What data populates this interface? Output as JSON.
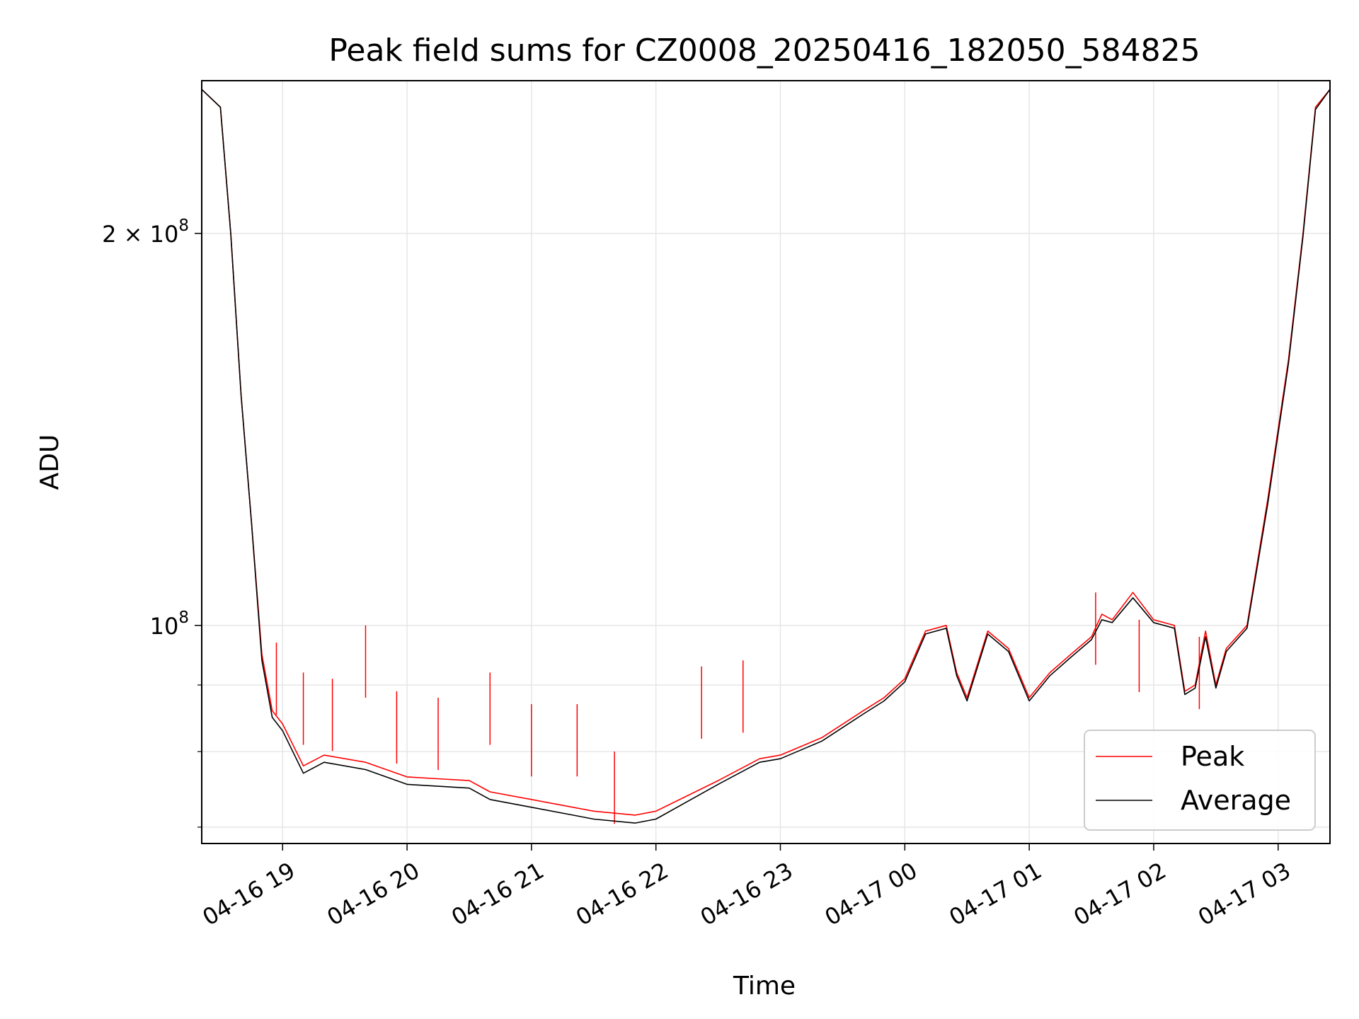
{
  "chart_data": {
    "type": "line",
    "title": "Peak field sums for CZ0008_20250416_182050_584825",
    "xlabel": "Time",
    "ylabel": "ADU",
    "x_ticks": [
      "04-16 19",
      "04-16 20",
      "04-16 21",
      "04-16 22",
      "04-16 23",
      "04-17 00",
      "04-17 01",
      "04-17 02",
      "04-17 03"
    ],
    "y_ticks": [
      {
        "value": 100000000,
        "mantissa": "",
        "base": "10",
        "exp": "8"
      },
      {
        "value": 200000000,
        "mantissa": "2 × ",
        "base": "10",
        "exp": "8"
      }
    ],
    "yscale": "log",
    "xlim": [
      "2025-04-16 18:21",
      "2025-04-17 03:25"
    ],
    "ylim": [
      68000000,
      262000000
    ],
    "grid": true,
    "legend_position": "lower-right",
    "series": [
      {
        "name": "Peak",
        "color": "#ff0000",
        "points": [
          [
            "2025-04-16 18:21",
            258000000
          ],
          [
            "2025-04-16 18:30",
            250000000
          ],
          [
            "2025-04-16 18:35",
            200000000
          ],
          [
            "2025-04-16 18:40",
            150000000
          ],
          [
            "2025-04-16 18:45",
            120000000
          ],
          [
            "2025-04-16 18:50",
            95000000
          ],
          [
            "2025-04-16 18:55",
            86000000
          ],
          [
            "2025-04-16 19:00",
            84000000
          ],
          [
            "2025-04-16 19:10",
            78000000
          ],
          [
            "2025-04-16 19:20",
            79500000
          ],
          [
            "2025-04-16 19:40",
            78500000
          ],
          [
            "2025-04-16 20:00",
            76500000
          ],
          [
            "2025-04-16 20:30",
            76000000
          ],
          [
            "2025-04-16 20:40",
            74500000
          ],
          [
            "2025-04-16 21:00",
            73500000
          ],
          [
            "2025-04-16 21:20",
            72500000
          ],
          [
            "2025-04-16 21:30",
            72000000
          ],
          [
            "2025-04-16 21:50",
            71500000
          ],
          [
            "2025-04-16 22:00",
            72000000
          ],
          [
            "2025-04-16 22:30",
            76000000
          ],
          [
            "2025-04-16 22:50",
            79000000
          ],
          [
            "2025-04-16 23:00",
            79500000
          ],
          [
            "2025-04-16 23:20",
            82000000
          ],
          [
            "2025-04-16 23:40",
            86000000
          ],
          [
            "2025-04-16 23:50",
            88000000
          ],
          [
            "2025-04-17 00:00",
            91000000
          ],
          [
            "2025-04-17 00:10",
            99000000
          ],
          [
            "2025-04-17 00:20",
            100000000
          ],
          [
            "2025-04-17 00:25",
            92000000
          ],
          [
            "2025-04-17 00:30",
            88000000
          ],
          [
            "2025-04-17 00:40",
            99000000
          ],
          [
            "2025-04-17 00:50",
            96000000
          ],
          [
            "2025-04-17 01:00",
            88000000
          ],
          [
            "2025-04-17 01:10",
            92000000
          ],
          [
            "2025-04-17 01:20",
            95000000
          ],
          [
            "2025-04-17 01:30",
            98000000
          ],
          [
            "2025-04-17 01:35",
            102000000
          ],
          [
            "2025-04-17 01:40",
            101000000
          ],
          [
            "2025-04-17 01:50",
            106000000
          ],
          [
            "2025-04-17 02:00",
            101000000
          ],
          [
            "2025-04-17 02:10",
            100000000
          ],
          [
            "2025-04-17 02:15",
            89000000
          ],
          [
            "2025-04-17 02:20",
            90000000
          ],
          [
            "2025-04-17 02:25",
            99000000
          ],
          [
            "2025-04-17 02:30",
            90000000
          ],
          [
            "2025-04-17 02:35",
            96000000
          ],
          [
            "2025-04-17 02:45",
            100000000
          ],
          [
            "2025-04-17 02:55",
            125000000
          ],
          [
            "2025-04-17 03:05",
            160000000
          ],
          [
            "2025-04-17 03:12",
            200000000
          ],
          [
            "2025-04-17 03:18",
            250000000
          ],
          [
            "2025-04-17 03:25",
            258000000
          ]
        ],
        "spikes": [
          [
            "2025-04-16 18:57",
            97000000
          ],
          [
            "2025-04-16 19:10",
            92000000
          ],
          [
            "2025-04-16 19:24",
            91000000
          ],
          [
            "2025-04-16 19:40",
            100000000
          ],
          [
            "2025-04-16 19:55",
            89000000
          ],
          [
            "2025-04-16 20:15",
            88000000
          ],
          [
            "2025-04-16 20:40",
            92000000
          ],
          [
            "2025-04-16 21:00",
            87000000
          ],
          [
            "2025-04-16 21:22",
            87000000
          ],
          [
            "2025-04-16 21:40",
            80000000
          ],
          [
            "2025-04-16 22:22",
            93000000
          ],
          [
            "2025-04-16 22:42",
            94000000
          ],
          [
            "2025-04-17 01:32",
            106000000
          ],
          [
            "2025-04-17 01:53",
            101000000
          ],
          [
            "2025-04-17 02:22",
            98000000
          ]
        ]
      },
      {
        "name": "Average",
        "color": "#000000",
        "points": [
          [
            "2025-04-16 18:21",
            258000000
          ],
          [
            "2025-04-16 18:30",
            250000000
          ],
          [
            "2025-04-16 18:35",
            200000000
          ],
          [
            "2025-04-16 18:40",
            150000000
          ],
          [
            "2025-04-16 18:45",
            120000000
          ],
          [
            "2025-04-16 18:50",
            94000000
          ],
          [
            "2025-04-16 18:55",
            85000000
          ],
          [
            "2025-04-16 19:00",
            83000000
          ],
          [
            "2025-04-16 19:10",
            77000000
          ],
          [
            "2025-04-16 19:20",
            78500000
          ],
          [
            "2025-04-16 19:40",
            77500000
          ],
          [
            "2025-04-16 20:00",
            75500000
          ],
          [
            "2025-04-16 20:30",
            75000000
          ],
          [
            "2025-04-16 20:40",
            73500000
          ],
          [
            "2025-04-16 21:00",
            72500000
          ],
          [
            "2025-04-16 21:20",
            71500000
          ],
          [
            "2025-04-16 21:30",
            71000000
          ],
          [
            "2025-04-16 21:50",
            70500000
          ],
          [
            "2025-04-16 22:00",
            71000000
          ],
          [
            "2025-04-16 22:30",
            75500000
          ],
          [
            "2025-04-16 22:50",
            78500000
          ],
          [
            "2025-04-16 23:00",
            79000000
          ],
          [
            "2025-04-16 23:20",
            81500000
          ],
          [
            "2025-04-16 23:40",
            85500000
          ],
          [
            "2025-04-16 23:50",
            87500000
          ],
          [
            "2025-04-17 00:00",
            90500000
          ],
          [
            "2025-04-17 00:10",
            98500000
          ],
          [
            "2025-04-17 00:20",
            99500000
          ],
          [
            "2025-04-17 00:25",
            91500000
          ],
          [
            "2025-04-17 00:30",
            87500000
          ],
          [
            "2025-04-17 00:40",
            98500000
          ],
          [
            "2025-04-17 00:50",
            95500000
          ],
          [
            "2025-04-17 01:00",
            87500000
          ],
          [
            "2025-04-17 01:10",
            91500000
          ],
          [
            "2025-04-17 01:20",
            94500000
          ],
          [
            "2025-04-17 01:30",
            97500000
          ],
          [
            "2025-04-17 01:35",
            101000000
          ],
          [
            "2025-04-17 01:40",
            100500000
          ],
          [
            "2025-04-17 01:50",
            105000000
          ],
          [
            "2025-04-17 02:00",
            100500000
          ],
          [
            "2025-04-17 02:10",
            99500000
          ],
          [
            "2025-04-17 02:15",
            88500000
          ],
          [
            "2025-04-17 02:20",
            89500000
          ],
          [
            "2025-04-17 02:25",
            98000000
          ],
          [
            "2025-04-17 02:30",
            89500000
          ],
          [
            "2025-04-17 02:35",
            95500000
          ],
          [
            "2025-04-17 02:45",
            99500000
          ],
          [
            "2025-04-17 02:55",
            124000000
          ],
          [
            "2025-04-17 03:05",
            159000000
          ],
          [
            "2025-04-17 03:12",
            199000000
          ],
          [
            "2025-04-17 03:18",
            249000000
          ],
          [
            "2025-04-17 03:25",
            258000000
          ]
        ]
      }
    ]
  }
}
